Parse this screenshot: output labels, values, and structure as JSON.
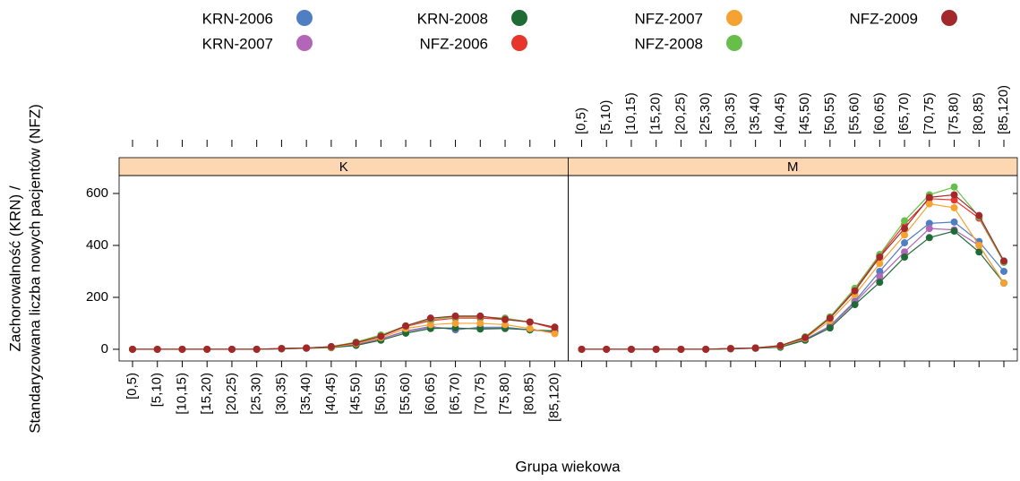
{
  "chart_data": {
    "type": "line",
    "x_label": "Grupa wiekowa",
    "y_label": [
      "Zachorowalność (KRN) /",
      "Standaryzowana liczba nowych pacjentów (NFZ)"
    ],
    "panels": [
      "K",
      "M"
    ],
    "categories": [
      "[0,5)",
      "[5,10)",
      "[10,15)",
      "[15,20)",
      "[20,25)",
      "[25,30)",
      "[30,35)",
      "[35,40)",
      "[40,45)",
      "[45,50)",
      "[50,55)",
      "[55,60)",
      "[60,65)",
      "[65,70)",
      "[70,75)",
      "[75,80)",
      "[80,85)",
      "[85,120)"
    ],
    "ylim": [
      -45,
      669
    ],
    "yticks": [
      0,
      200,
      400,
      600
    ],
    "series": [
      {
        "name": "KRN-2006",
        "color": "#4f7fc2",
        "values": [
          [
            0,
            0,
            0,
            0,
            0,
            0,
            2,
            4,
            8,
            18,
            40,
            70,
            88,
            75,
            85,
            85,
            75,
            70
          ],
          [
            0,
            0,
            0,
            0,
            0,
            0,
            2,
            4,
            10,
            38,
            90,
            185,
            300,
            410,
            485,
            490,
            415,
            300
          ]
        ]
      },
      {
        "name": "KRN-2007",
        "color": "#b266b8",
        "values": [
          [
            0,
            0,
            0,
            0,
            0,
            0,
            2,
            4,
            8,
            18,
            40,
            68,
            85,
            80,
            80,
            82,
            75,
            65
          ],
          [
            0,
            0,
            0,
            0,
            0,
            0,
            2,
            4,
            9,
            36,
            88,
            180,
            280,
            375,
            465,
            460,
            400,
            255
          ]
        ]
      },
      {
        "name": "KRN-2008",
        "color": "#1f6a35",
        "values": [
          [
            0,
            0,
            0,
            0,
            0,
            0,
            2,
            4,
            6,
            15,
            35,
            62,
            80,
            82,
            78,
            80,
            75,
            70
          ],
          [
            0,
            0,
            0,
            0,
            0,
            0,
            2,
            4,
            8,
            35,
            82,
            172,
            258,
            355,
            430,
            455,
            375,
            255
          ]
        ]
      },
      {
        "name": "NFZ-2006",
        "color": "#e8352b",
        "values": [
          [
            0,
            0,
            0,
            0,
            0,
            0,
            3,
            5,
            10,
            25,
            50,
            88,
            110,
            120,
            120,
            115,
            105,
            80
          ],
          [
            0,
            0,
            0,
            0,
            0,
            0,
            3,
            5,
            14,
            46,
            120,
            230,
            360,
            480,
            580,
            575,
            505,
            335
          ]
        ]
      },
      {
        "name": "NFZ-2007",
        "color": "#f5a233",
        "values": [
          [
            0,
            0,
            0,
            0,
            0,
            0,
            3,
            5,
            8,
            22,
            45,
            80,
            95,
            100,
            100,
            95,
            80,
            60
          ],
          [
            0,
            0,
            0,
            0,
            0,
            0,
            3,
            5,
            12,
            42,
            110,
            210,
            330,
            440,
            560,
            545,
            400,
            255
          ]
        ]
      },
      {
        "name": "NFZ-2008",
        "color": "#68be4a",
        "values": [
          [
            0,
            0,
            0,
            0,
            0,
            0,
            3,
            5,
            10,
            28,
            55,
            90,
            115,
            125,
            125,
            120,
            105,
            85
          ],
          [
            0,
            0,
            0,
            0,
            0,
            0,
            3,
            5,
            14,
            48,
            125,
            235,
            365,
            495,
            595,
            625,
            510,
            335
          ]
        ]
      },
      {
        "name": "NFZ-2009",
        "color": "#a3282b",
        "values": [
          [
            0,
            0,
            0,
            0,
            0,
            0,
            3,
            5,
            10,
            25,
            50,
            90,
            120,
            128,
            128,
            115,
            105,
            85
          ],
          [
            0,
            0,
            0,
            0,
            0,
            0,
            3,
            5,
            14,
            45,
            120,
            225,
            355,
            465,
            585,
            595,
            515,
            340
          ]
        ]
      }
    ]
  }
}
